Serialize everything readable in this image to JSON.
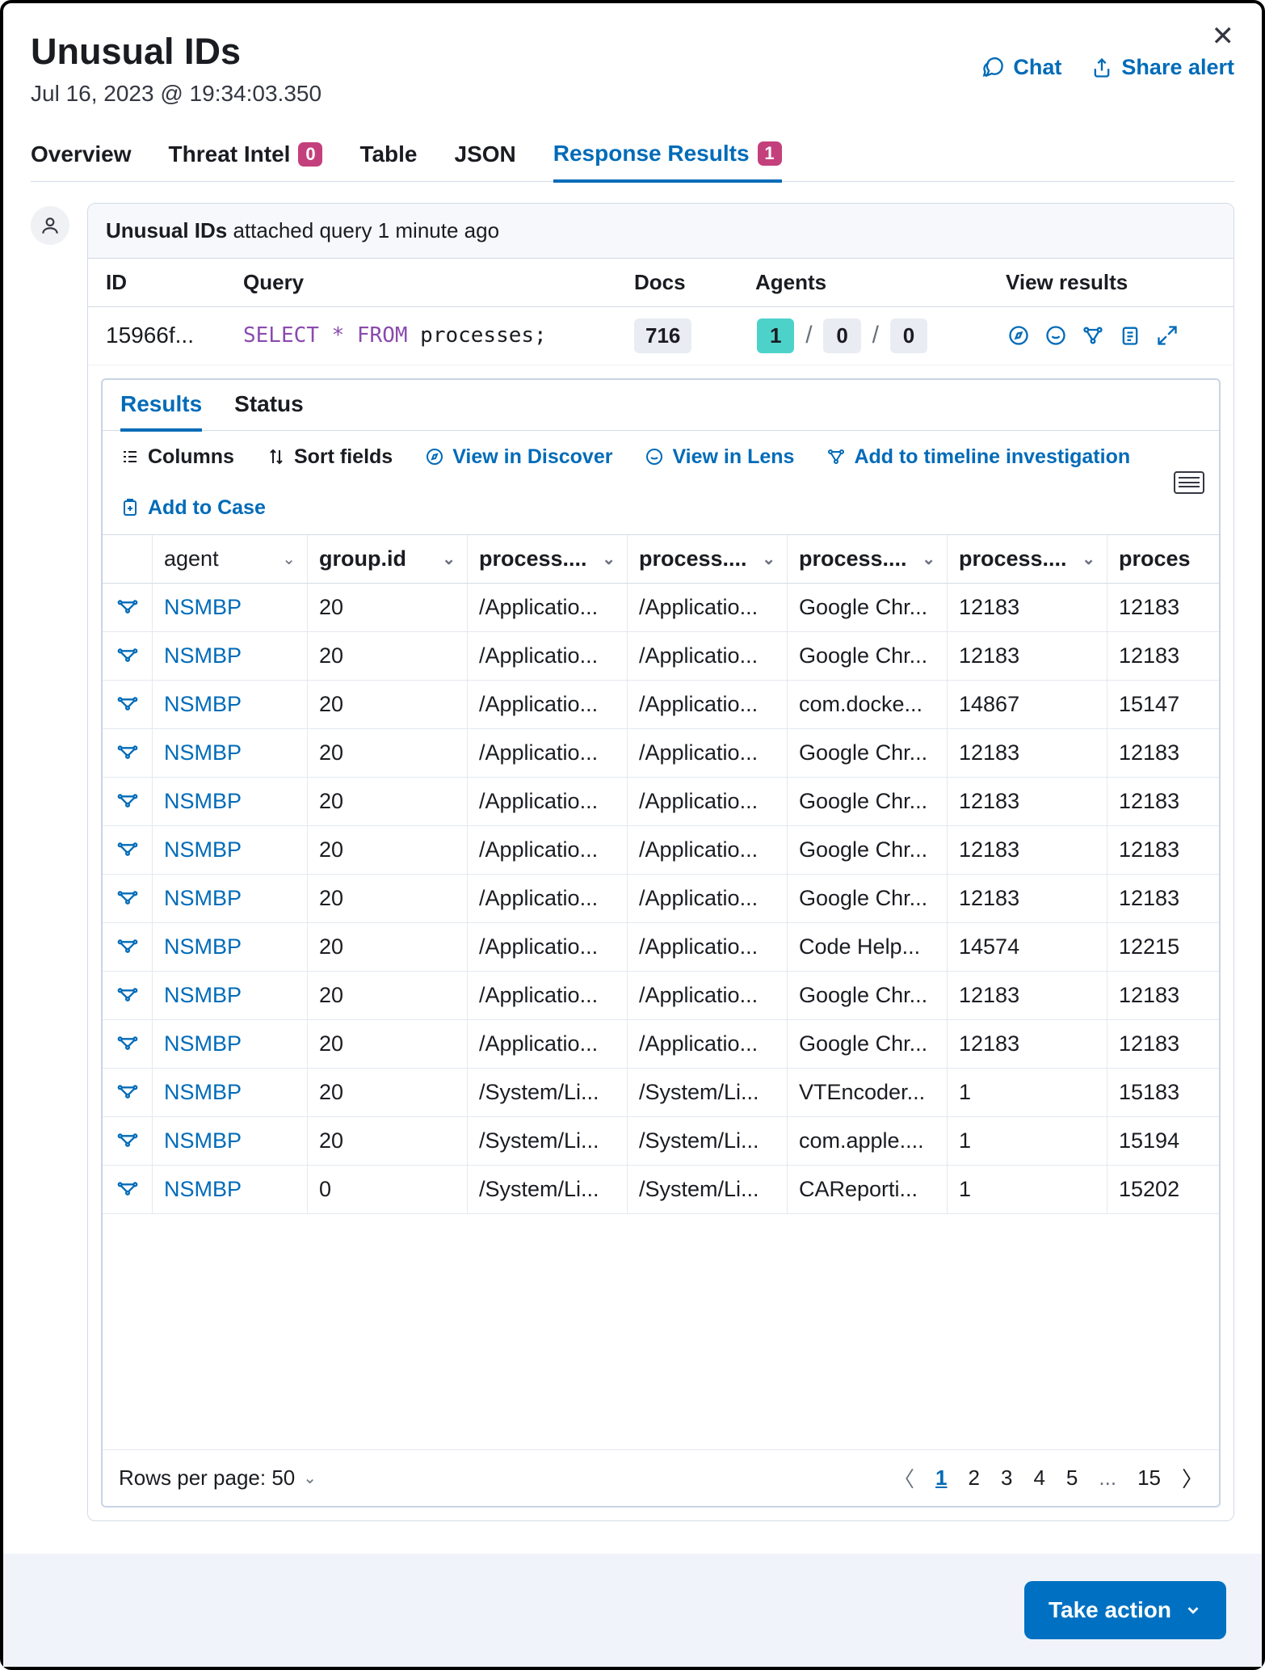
{
  "header": {
    "title": "Unusual IDs",
    "timestamp": "Jul 16, 2023 @ 19:34:03.350",
    "chat_label": "Chat",
    "share_label": "Share alert"
  },
  "tabs": {
    "overview": "Overview",
    "threat_intel": "Threat Intel",
    "threat_intel_count": "0",
    "table": "Table",
    "json": "JSON",
    "response_results": "Response Results",
    "response_results_count": "1"
  },
  "banner": {
    "title": "Unusual IDs",
    "suffix": " attached query 1 minute ago"
  },
  "summary": {
    "head_id": "ID",
    "head_query": "Query",
    "head_docs": "Docs",
    "head_agents": "Agents",
    "head_view": "View results",
    "id": "15966f...",
    "query_kw1": "SELECT",
    "query_star": "*",
    "query_kw2": "FROM",
    "query_rest": " processes;",
    "docs": "716",
    "agents_a": "1",
    "agents_b": "0",
    "agents_c": "0"
  },
  "inner_tabs": {
    "results": "Results",
    "status": "Status"
  },
  "toolbar": {
    "columns": "Columns",
    "sort": "Sort fields",
    "discover": "View in Discover",
    "lens": "View in Lens",
    "timeline": "Add to timeline investigation",
    "case": "Add to Case"
  },
  "grid": {
    "col_agent": "agent",
    "col_group": "group.id",
    "col_p1": "process....",
    "col_p2": "process....",
    "col_p3": "process....",
    "col_p4": "process....",
    "col_p5": "proces",
    "rows": [
      {
        "agent": "NSMBP",
        "group": "20",
        "p1": "/Applicatio...",
        "p2": "/Applicatio...",
        "p3": "Google Chr...",
        "p4": "12183",
        "p5": "12183"
      },
      {
        "agent": "NSMBP",
        "group": "20",
        "p1": "/Applicatio...",
        "p2": "/Applicatio...",
        "p3": "Google Chr...",
        "p4": "12183",
        "p5": "12183"
      },
      {
        "agent": "NSMBP",
        "group": "20",
        "p1": "/Applicatio...",
        "p2": "/Applicatio...",
        "p3": "com.docke...",
        "p4": "14867",
        "p5": "15147"
      },
      {
        "agent": "NSMBP",
        "group": "20",
        "p1": "/Applicatio...",
        "p2": "/Applicatio...",
        "p3": "Google Chr...",
        "p4": "12183",
        "p5": "12183"
      },
      {
        "agent": "NSMBP",
        "group": "20",
        "p1": "/Applicatio...",
        "p2": "/Applicatio...",
        "p3": "Google Chr...",
        "p4": "12183",
        "p5": "12183"
      },
      {
        "agent": "NSMBP",
        "group": "20",
        "p1": "/Applicatio...",
        "p2": "/Applicatio...",
        "p3": "Google Chr...",
        "p4": "12183",
        "p5": "12183"
      },
      {
        "agent": "NSMBP",
        "group": "20",
        "p1": "/Applicatio...",
        "p2": "/Applicatio...",
        "p3": "Google Chr...",
        "p4": "12183",
        "p5": "12183"
      },
      {
        "agent": "NSMBP",
        "group": "20",
        "p1": "/Applicatio...",
        "p2": "/Applicatio...",
        "p3": "Code Help...",
        "p4": "14574",
        "p5": "12215"
      },
      {
        "agent": "NSMBP",
        "group": "20",
        "p1": "/Applicatio...",
        "p2": "/Applicatio...",
        "p3": "Google Chr...",
        "p4": "12183",
        "p5": "12183"
      },
      {
        "agent": "NSMBP",
        "group": "20",
        "p1": "/Applicatio...",
        "p2": "/Applicatio...",
        "p3": "Google Chr...",
        "p4": "12183",
        "p5": "12183"
      },
      {
        "agent": "NSMBP",
        "group": "20",
        "p1": "/System/Li...",
        "p2": "/System/Li...",
        "p3": "VTEncoder...",
        "p4": "1",
        "p5": "15183"
      },
      {
        "agent": "NSMBP",
        "group": "20",
        "p1": "/System/Li...",
        "p2": "/System/Li...",
        "p3": "com.apple....",
        "p4": "1",
        "p5": "15194"
      },
      {
        "agent": "NSMBP",
        "group": "0",
        "p1": "/System/Li...",
        "p2": "/System/Li...",
        "p3": "CAReporti...",
        "p4": "1",
        "p5": "15202"
      }
    ]
  },
  "pager": {
    "rows_label": "Rows per page: 50",
    "pages": [
      "1",
      "2",
      "3",
      "4",
      "5"
    ],
    "ellipsis": "...",
    "last": "15"
  },
  "footer": {
    "take_action": "Take action"
  }
}
